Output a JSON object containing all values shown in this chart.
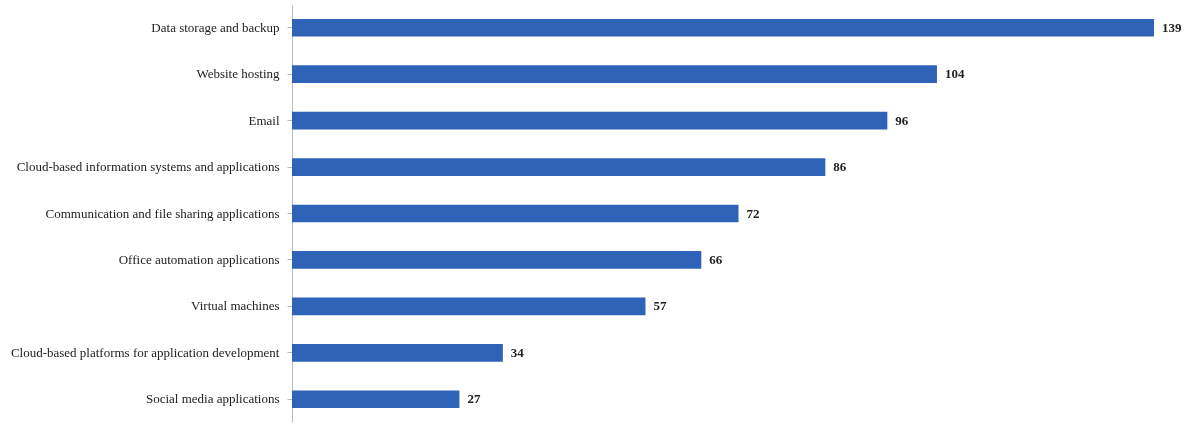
{
  "chart_data": {
    "type": "bar",
    "orientation": "horizontal",
    "categories": [
      "Data storage and backup",
      "Website hosting",
      "Email",
      "Cloud-based information systems and applications",
      "Communication and file sharing applications",
      "Office automation applications",
      "Virtual machines",
      "Cloud-based platforms for application development",
      "Social media applications"
    ],
    "values": [
      139,
      104,
      96,
      86,
      72,
      66,
      57,
      34,
      27
    ],
    "color": "#2f63b8",
    "data_labels": true,
    "tick_labels": "y"
  }
}
